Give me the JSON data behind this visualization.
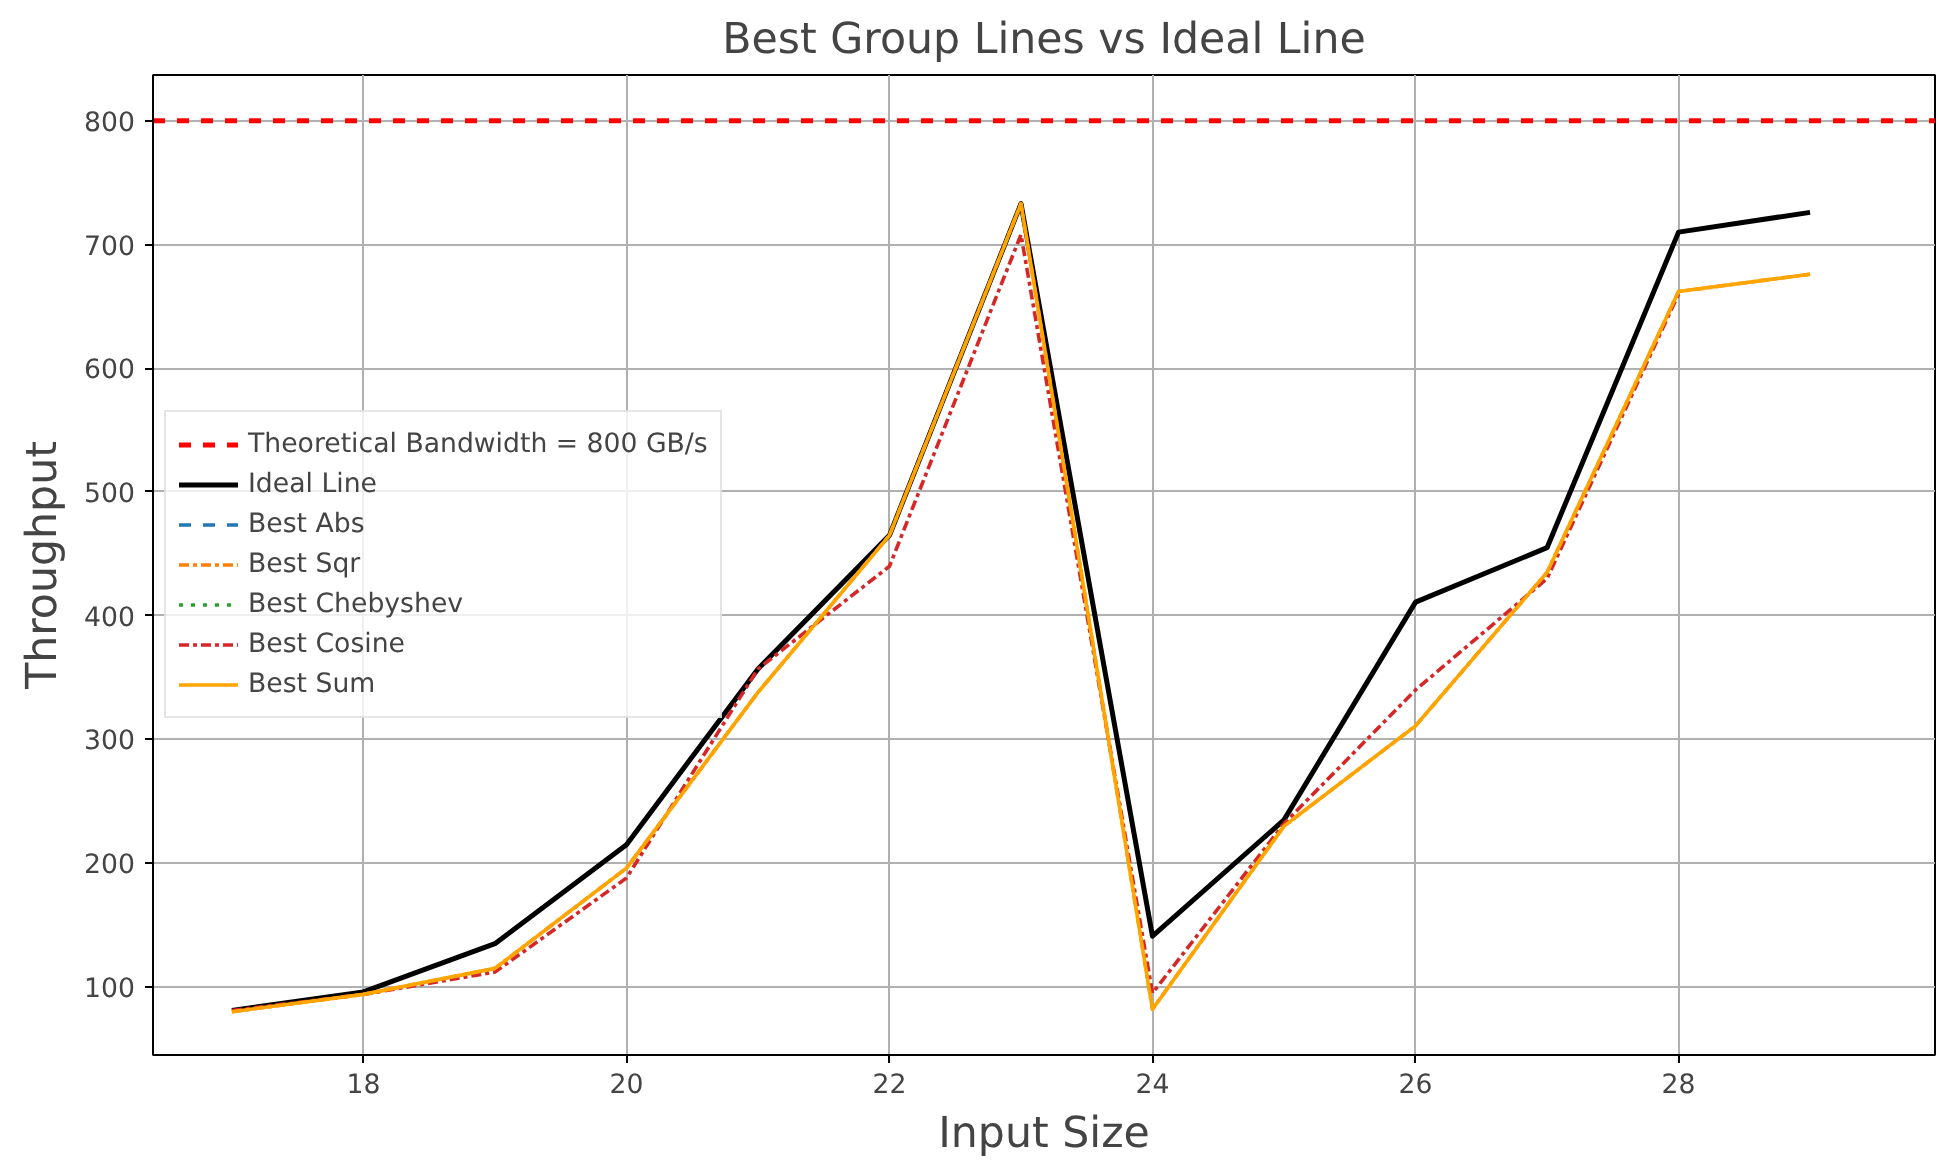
{
  "chart_data": {
    "type": "line",
    "title": "Best Group Lines vs Ideal Line",
    "xlabel": "Input Size",
    "ylabel": "Throughput",
    "x": [
      17,
      18,
      19,
      20,
      21,
      22,
      23,
      24,
      25,
      26,
      27,
      28,
      29
    ],
    "xlim": [
      16.4,
      29.95
    ],
    "xticks": [
      18,
      20,
      22,
      24,
      26,
      28
    ],
    "ylim": [
      45,
      837
    ],
    "yticks": [
      100,
      200,
      300,
      400,
      500,
      600,
      700,
      800
    ],
    "grid": true,
    "legend": "left",
    "ref_lines": [
      {
        "axis": "y",
        "value": 800,
        "label": "Theoretical Bandwidth = 800 GB/s",
        "color": "#ff0000",
        "line_style": "dashed"
      }
    ],
    "series": [
      {
        "name": "Ideal Line",
        "color": "#000000",
        "line_style": "solid",
        "values": [
          81,
          96,
          135,
          215,
          357,
          465,
          733,
          141,
          235,
          411,
          455,
          710,
          726
        ]
      },
      {
        "name": "Best Abs",
        "color": "#1f77b4",
        "line_style": "dashed",
        "values": [
          null,
          null,
          null,
          null,
          null,
          null,
          null,
          null,
          null,
          null,
          null,
          null,
          null
        ]
      },
      {
        "name": "Best Sqr",
        "color": "#ff7f0e",
        "line_style": "dashdot",
        "values": [
          80,
          94,
          115,
          196,
          338,
          465,
          733,
          82,
          230,
          311,
          435,
          662,
          676
        ]
      },
      {
        "name": "Best Chebyshev",
        "color": "#2ca02c",
        "line_style": "dotted",
        "values": [
          null,
          null,
          null,
          null,
          null,
          null,
          null,
          null,
          null,
          null,
          null,
          null,
          null
        ]
      },
      {
        "name": "Best Cosine",
        "color": "#d62728",
        "line_style": "dashdot",
        "values": [
          81,
          94,
          112,
          188,
          357,
          440,
          708,
          95,
          232,
          340,
          430,
          660,
          null
        ]
      },
      {
        "name": "Best Sum",
        "color": "#ffa500",
        "line_style": "solid",
        "values": [
          80,
          94,
          115,
          196,
          338,
          465,
          733,
          82,
          230,
          311,
          435,
          662,
          676
        ]
      }
    ]
  }
}
